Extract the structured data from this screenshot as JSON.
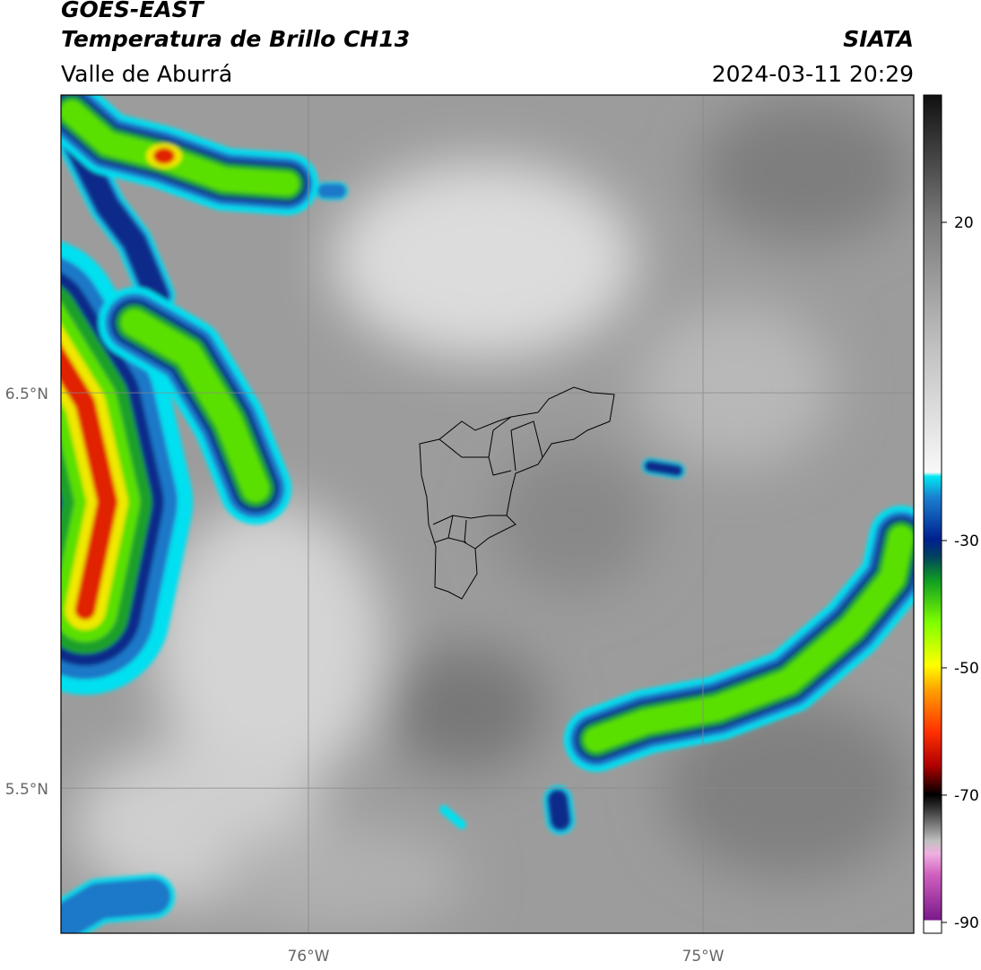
{
  "header": {
    "title": "GOES-EAST",
    "subtitle": "Temperatura de Brillo CH13",
    "region": "Valle de Aburrá",
    "agency": "SIATA",
    "timestamp": "2024-03-11 20:29"
  },
  "map": {
    "ylim": [
      5.133,
      7.253
    ],
    "xlim": [
      -76.627,
      -74.466
    ],
    "yticks": [
      {
        "value": 6.5,
        "label": "6.5°N"
      },
      {
        "value": 5.5,
        "label": "5.5°N"
      }
    ],
    "xticks": [
      {
        "value": -76,
        "label": "76°W"
      },
      {
        "value": -75,
        "label": "75°W"
      }
    ],
    "grid": true
  },
  "colorbar": {
    "lim": [
      -91.7,
      40
    ],
    "ticks": [
      20,
      -30,
      -50,
      -70,
      -90
    ]
  }
}
